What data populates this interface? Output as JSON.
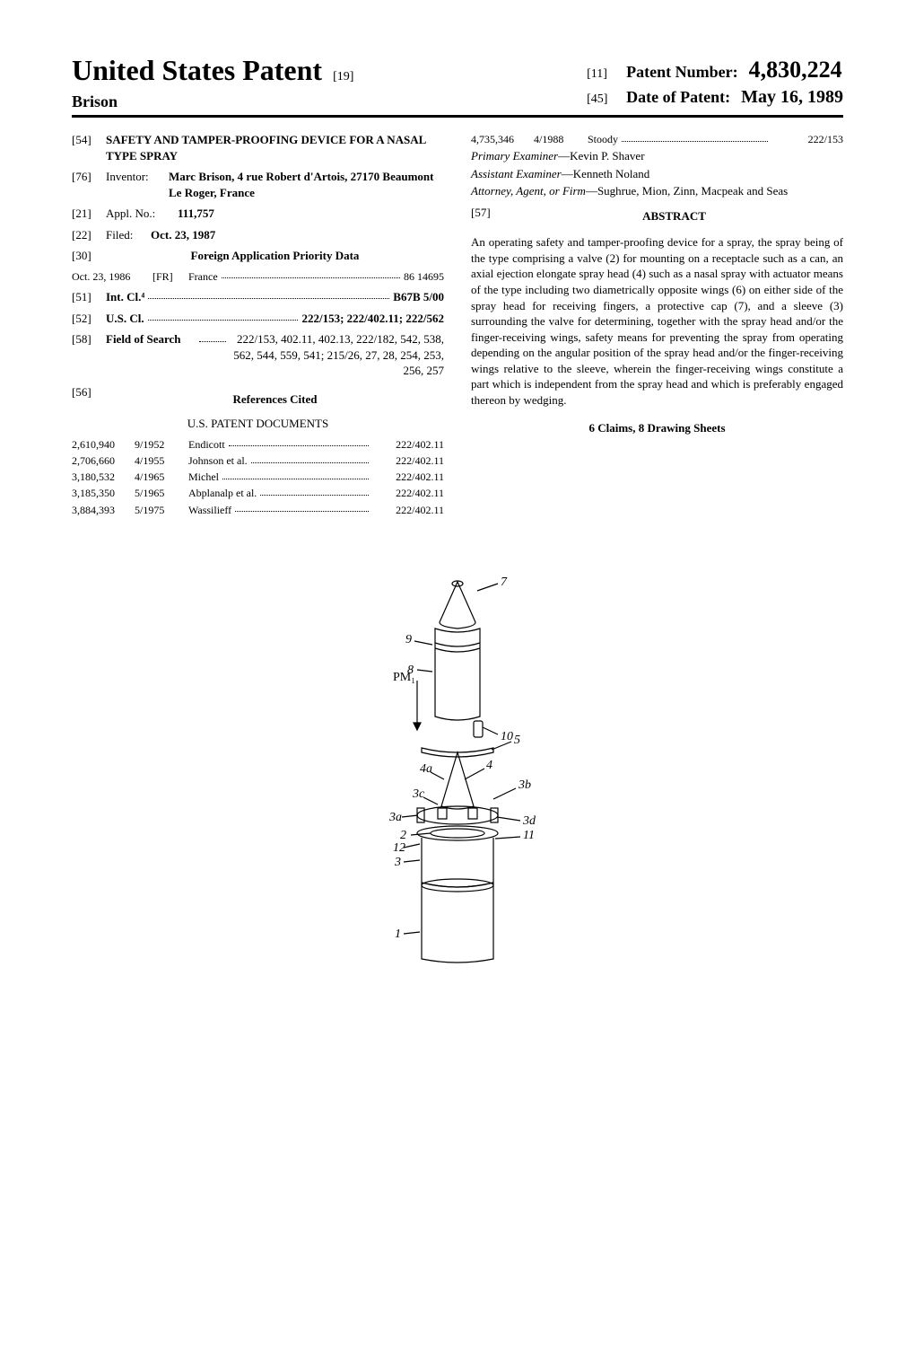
{
  "header": {
    "main_title": "United States Patent",
    "title_suffix": "[19]",
    "inventor_surname": "Brison",
    "patent_number_label": "Patent Number:",
    "patent_number_code": "[11]",
    "patent_number": "4,830,224",
    "date_label": "Date of Patent:",
    "date_code": "[45]",
    "date": "May 16, 1989"
  },
  "left": {
    "title_code": "[54]",
    "title": "SAFETY AND TAMPER-PROOFING DEVICE FOR A NASAL TYPE SPRAY",
    "inventor_code": "[76]",
    "inventor_label": "Inventor:",
    "inventor_value": "Marc Brison, 4 rue Robert d'Artois, 27170 Beaumont Le Roger, France",
    "appl_code": "[21]",
    "appl_label": "Appl. No.:",
    "appl_value": "111,757",
    "filed_code": "[22]",
    "filed_label": "Filed:",
    "filed_value": "Oct. 23, 1987",
    "foreign_code": "[30]",
    "foreign_label": "Foreign Application Priority Data",
    "foreign_date": "Oct. 23, 1986",
    "foreign_country_code": "[FR]",
    "foreign_country": "France",
    "foreign_num": "86 14695",
    "intcl_code": "[51]",
    "intcl_label": "Int. Cl.⁴",
    "intcl_value": "B67B 5/00",
    "uscl_code": "[52]",
    "uscl_label": "U.S. Cl.",
    "uscl_value": "222/153; 222/402.11; 222/562",
    "search_code": "[58]",
    "search_label": "Field of Search",
    "search_value": "222/153, 402.11, 402.13, 222/182, 542, 538, 562, 544, 559, 541; 215/26, 27, 28, 254, 253, 256, 257",
    "refs_code": "[56]",
    "refs_label": "References Cited",
    "us_docs_label": "U.S. PATENT DOCUMENTS",
    "refs": [
      {
        "num": "2,610,940",
        "date": "9/1952",
        "name": "Endicott",
        "class": "222/402.11"
      },
      {
        "num": "2,706,660",
        "date": "4/1955",
        "name": "Johnson et al.",
        "class": "222/402.11"
      },
      {
        "num": "3,180,532",
        "date": "4/1965",
        "name": "Michel",
        "class": "222/402.11"
      },
      {
        "num": "3,185,350",
        "date": "5/1965",
        "name": "Abplanalp et al.",
        "class": "222/402.11"
      },
      {
        "num": "3,884,393",
        "date": "5/1975",
        "name": "Wassilieff",
        "class": "222/402.11"
      }
    ]
  },
  "right": {
    "extra_ref": {
      "num": "4,735,346",
      "date": "4/1988",
      "name": "Stoody",
      "class": "222/153"
    },
    "primary_examiner_label": "Primary Examiner",
    "primary_examiner": "Kevin P. Shaver",
    "assistant_examiner_label": "Assistant Examiner",
    "assistant_examiner": "Kenneth Noland",
    "attorney_label": "Attorney, Agent, or Firm",
    "attorney": "Sughrue, Mion, Zinn, Macpeak and Seas",
    "abstract_code": "[57]",
    "abstract_label": "ABSTRACT",
    "abstract_text": "An operating safety and tamper-proofing device for a spray, the spray being of the type comprising a valve (2) for mounting on a receptacle such as a can, an axial ejection elongate spray head (4) such as a nasal spray with actuator means of the type including two diametrically opposite wings (6) on either side of the spray head for receiving fingers, a protective cap (7), and a sleeve (3) surrounding the valve for determining, together with the spray head and/or the finger-receiving wings, safety means for preventing the spray from operating depending on the angular position of the spray head and/or the finger-receiving wings relative to the sleeve, wherein the finger-receiving wings constitute a part which is independent from the spray head and which is preferably engaged thereon by wedging.",
    "claims_line": "6 Claims, 8 Drawing Sheets"
  },
  "figure": {
    "labels": [
      "7",
      "9",
      "8",
      "PM₁",
      "10",
      "5",
      "4",
      "4a",
      "3b",
      "3c",
      "3a",
      "3d",
      "2",
      "12",
      "11",
      "3",
      "1"
    ]
  }
}
